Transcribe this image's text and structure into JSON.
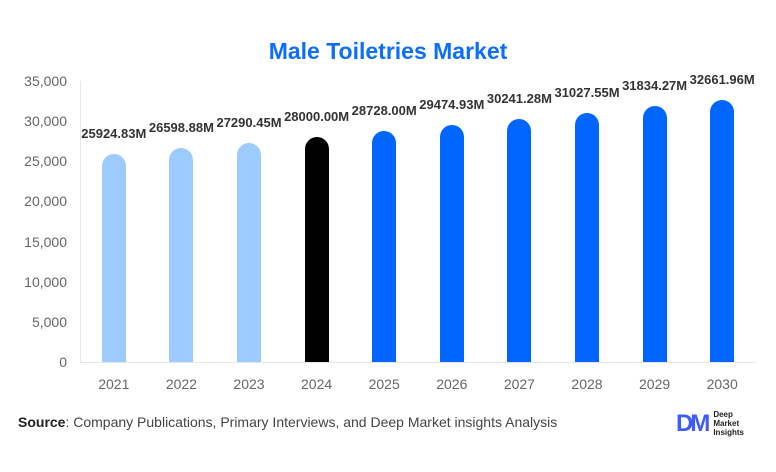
{
  "chart_data": {
    "type": "bar",
    "title": "Male Toiletries Market",
    "xlabel": "",
    "ylabel": "",
    "ylim": [
      0,
      35000
    ],
    "yticks": [
      "0",
      "5,000",
      "10,000",
      "15,000",
      "20,000",
      "25,000",
      "30,000",
      "35,000"
    ],
    "ytick_values": [
      0,
      5000,
      10000,
      15000,
      20000,
      25000,
      30000,
      35000
    ],
    "categories": [
      "2021",
      "2022",
      "2023",
      "2024",
      "2025",
      "2026",
      "2027",
      "2028",
      "2029",
      "2030"
    ],
    "values": [
      25924.83,
      26598.88,
      27290.45,
      28000.0,
      28728.0,
      29474.93,
      30241.28,
      31027.55,
      31834.27,
      32661.96
    ],
    "labels": [
      "25924.83M",
      "26598.88M",
      "27290.45M",
      "28000.00M",
      "28728.00M",
      "29474.93M",
      "30241.28M",
      "31027.55M",
      "31834.27M",
      "32661.96M"
    ],
    "bar_colors": [
      "#9ecbff",
      "#9ecbff",
      "#9ecbff",
      "#000000",
      "#0066ff",
      "#0066ff",
      "#0066ff",
      "#0066ff",
      "#0066ff",
      "#0066ff"
    ],
    "grid": false,
    "legend": null
  },
  "footer": {
    "source_label": "Source",
    "source_text": ": Company Publications, Primary Interviews, and Deep Market insights Analysis",
    "logo_mark": "DM",
    "logo_lines": [
      "Deep",
      "Market",
      "Insights"
    ]
  },
  "colors": {
    "title": "#0d6efd",
    "historical": "#9ecbff",
    "base_year": "#000000",
    "forecast": "#0066ff"
  }
}
